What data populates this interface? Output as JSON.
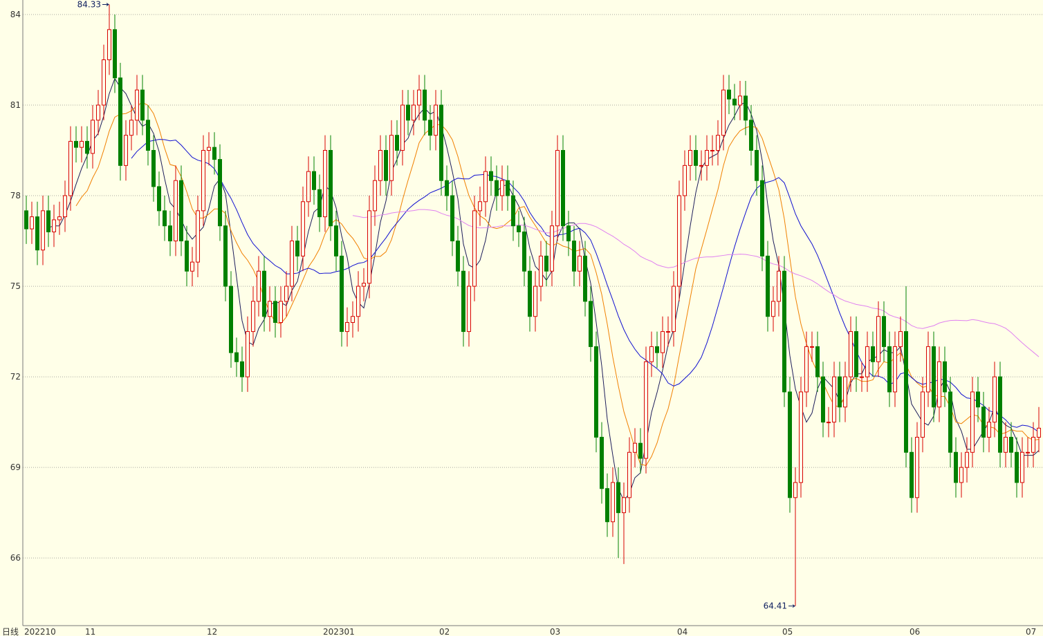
{
  "chart_data": {
    "type": "candlestick",
    "period_label": "日线",
    "categories": [
      "202210",
      null,
      null,
      null,
      null,
      null,
      null,
      null,
      null,
      null,
      null,
      "11",
      null,
      null,
      null,
      null,
      null,
      null,
      null,
      null,
      null,
      null,
      null,
      null,
      null,
      null,
      null,
      null,
      null,
      null,
      null,
      null,
      null,
      "12",
      null,
      null,
      null,
      null,
      null,
      null,
      null,
      null,
      null,
      null,
      null,
      null,
      null,
      null,
      null,
      null,
      null,
      null,
      null,
      null,
      "202301",
      null,
      null,
      null,
      null,
      null,
      null,
      null,
      null,
      null,
      null,
      null,
      null,
      null,
      null,
      null,
      null,
      null,
      null,
      null,
      null,
      "02",
      null,
      null,
      null,
      null,
      null,
      null,
      null,
      null,
      null,
      null,
      null,
      null,
      null,
      null,
      null,
      null,
      null,
      null,
      null,
      "03",
      null,
      null,
      null,
      null,
      null,
      null,
      null,
      null,
      null,
      null,
      null,
      null,
      null,
      null,
      null,
      null,
      null,
      null,
      null,
      null,
      null,
      null,
      "04",
      null,
      null,
      null,
      null,
      null,
      null,
      null,
      null,
      null,
      null,
      null,
      null,
      null,
      null,
      null,
      null,
      null,
      null,
      "05",
      null,
      null,
      null,
      null,
      null,
      null,
      null,
      null,
      null,
      null,
      null,
      null,
      null,
      null,
      null,
      null,
      null,
      null,
      null,
      null,
      null,
      null,
      "06",
      null,
      null,
      null,
      null,
      null,
      null,
      null,
      null,
      null,
      null,
      null,
      null,
      null,
      null,
      null,
      null,
      null,
      null,
      null,
      null,
      "07",
      null,
      null
    ],
    "open": [
      77.5,
      76.9,
      77.3,
      76.2,
      77.5,
      76.8,
      77.2,
      77.3,
      78,
      79.8,
      79.6,
      79.8,
      79.4,
      80.5,
      81,
      82.5,
      83.5,
      81.9,
      79,
      80,
      80.5,
      81.5,
      80.5,
      79.5,
      78.3,
      77.5,
      77,
      76.5,
      78.5,
      76.5,
      75.5,
      75.8,
      77.5,
      79.5,
      79.6,
      79.2,
      77,
      75,
      72.8,
      72.5,
      72,
      73.5,
      74.5,
      75.5,
      74,
      74.5,
      73.8,
      74.5,
      75,
      76.5,
      76,
      77.8,
      78.8,
      78.2,
      77.3,
      79.5,
      77,
      76,
      73.5,
      73.8,
      74,
      75,
      75.1,
      77.5,
      78.5,
      79.5,
      78.5,
      80,
      79.5,
      81,
      80.5,
      81,
      81.5,
      80.5,
      80,
      81,
      78.5,
      78,
      76.5,
      75.5,
      73.5,
      75,
      77.5,
      77.8,
      78.8,
      78.5,
      78,
      78.5,
      78,
      77,
      76.8,
      75.5,
      74,
      75,
      76,
      75.5,
      77,
      79.5,
      77,
      76.5,
      75.5,
      76,
      74.5,
      73,
      70,
      68.3,
      67.2,
      68.5,
      67.5,
      68,
      69.5,
      69.8,
      69.3,
      72.5,
      73,
      72.8,
      73.5,
      73.5,
      75,
      78,
      79,
      79.5,
      79,
      79,
      79.5,
      79.5,
      80,
      81.5,
      81.2,
      81,
      81.3,
      80.5,
      79.5,
      78.5,
      76,
      74,
      74.5,
      75.5,
      71.5,
      68,
      68.5,
      71.5,
      73,
      73,
      72,
      70.5,
      70.5,
      72,
      71,
      72,
      73.5,
      72,
      72,
      73,
      72.5,
      74,
      73,
      71.5,
      73,
      73.5,
      69.5,
      68,
      70,
      71.5,
      73,
      71,
      72.5,
      71.5,
      69.5,
      68.5,
      69,
      69.5,
      71.5,
      71,
      70,
      70.5,
      72,
      69.5,
      70,
      69.5,
      68.5,
      69.5,
      69.5,
      70
    ],
    "high": [
      78,
      77.8,
      77.8,
      78,
      78,
      77.7,
      77.8,
      78.5,
      80.3,
      80.3,
      80.3,
      80.3,
      81,
      81.5,
      83,
      84.33,
      84,
      82.4,
      80.5,
      81,
      82,
      82,
      81,
      80,
      78.8,
      78,
      77.5,
      79,
      79,
      77,
      76.3,
      78,
      80,
      80.1,
      80.1,
      79.7,
      77.5,
      75.5,
      73.3,
      73,
      74,
      75,
      76,
      76,
      75,
      75,
      75,
      75.5,
      77,
      77,
      78.3,
      79.3,
      79.3,
      78.7,
      80,
      80,
      77.5,
      76.5,
      74.3,
      74.5,
      75.5,
      75.6,
      78,
      79,
      80,
      80,
      80.5,
      80.5,
      81.5,
      81.5,
      81.5,
      82,
      82,
      81,
      81.5,
      81.5,
      79,
      78.5,
      77,
      76,
      75.5,
      78,
      78.3,
      79.3,
      79.3,
      79,
      79,
      79,
      78.5,
      77.5,
      77.3,
      76,
      75.5,
      76.5,
      76.5,
      77.5,
      80,
      80,
      77.5,
      77,
      76.5,
      76.5,
      75,
      73.5,
      70.5,
      68.8,
      69,
      69,
      68.5,
      70,
      70.3,
      70.3,
      73,
      73.5,
      73.5,
      74,
      74,
      75.5,
      78.5,
      79.5,
      80,
      80,
      79.5,
      80,
      80,
      80.5,
      82,
      82,
      81.7,
      81.8,
      81.8,
      81,
      80,
      79,
      76.5,
      75,
      76,
      76,
      72,
      69,
      72,
      73.5,
      73.5,
      73.5,
      72.5,
      71,
      72.5,
      72.5,
      72.5,
      74,
      74,
      72.5,
      73.5,
      73.5,
      74.5,
      74.5,
      73.5,
      73.5,
      74,
      75,
      70,
      70.5,
      72,
      73.5,
      73.5,
      73,
      73,
      72,
      70,
      69.5,
      70,
      72,
      72,
      71.5,
      71,
      72.5,
      72.5,
      70.5,
      70.5,
      70,
      70,
      70,
      70.5,
      71
    ],
    "low": [
      76.4,
      76.4,
      75.7,
      75.7,
      76.3,
      76.3,
      76.7,
      76.8,
      77.5,
      79.1,
      79.1,
      78.9,
      78.9,
      80,
      80.5,
      82,
      81.4,
      78.5,
      78.5,
      79.5,
      80,
      80,
      79,
      77.8,
      77,
      76.5,
      76,
      76,
      76,
      75,
      75,
      75.3,
      77,
      79,
      78.7,
      76.5,
      74.5,
      72.3,
      72,
      71.5,
      71.5,
      73,
      74,
      73.5,
      73.5,
      73.3,
      73.3,
      74,
      74.5,
      75.5,
      75.5,
      77.3,
      77.7,
      76.8,
      76.8,
      76.5,
      75.5,
      73,
      73,
      73.3,
      73.5,
      74.5,
      74.6,
      77,
      78,
      78,
      78,
      79,
      79,
      80,
      80,
      80.5,
      80,
      79.5,
      79.5,
      78,
      77.5,
      76,
      75,
      73,
      73,
      74.5,
      77,
      77.3,
      78,
      77.5,
      77.5,
      77.5,
      76.5,
      76.3,
      75,
      73.5,
      73.5,
      74.5,
      75,
      75,
      76.5,
      76.5,
      76,
      75,
      75,
      74,
      72.5,
      69.5,
      67.8,
      66.7,
      66.7,
      66,
      65.8,
      67.5,
      69,
      68.8,
      68.8,
      72,
      72.3,
      72.3,
      73,
      73,
      74.5,
      77.5,
      78.5,
      78.5,
      78.5,
      78.5,
      79,
      79,
      79.5,
      80.7,
      80.5,
      80.5,
      80,
      79,
      78,
      75.5,
      73.5,
      73.5,
      74,
      71,
      67.5,
      64.41,
      68,
      71,
      72.5,
      71.5,
      70,
      70,
      70,
      70.5,
      70.5,
      71.5,
      71.5,
      71.5,
      71.5,
      72,
      72,
      72.5,
      71,
      71,
      72.5,
      69,
      67.5,
      67.5,
      69.5,
      71,
      70.5,
      70.5,
      71,
      69,
      68,
      68,
      68.5,
      69,
      70.5,
      69.5,
      69.5,
      70,
      69,
      69,
      69,
      68,
      68,
      69,
      69,
      69.5
    ],
    "close": [
      76.9,
      77.3,
      76.2,
      77.5,
      76.8,
      77.2,
      77.3,
      78,
      79.8,
      79.6,
      79.8,
      79.4,
      80.5,
      81,
      82.5,
      83.5,
      81.9,
      79,
      80,
      80.5,
      81.5,
      80.5,
      79.5,
      78.3,
      77.5,
      77,
      76.5,
      78.5,
      76.5,
      75.5,
      75.8,
      77.5,
      79.5,
      79.6,
      79.2,
      77,
      75,
      72.8,
      72.5,
      72,
      73.5,
      74.5,
      75.5,
      74,
      74.5,
      73.8,
      74.5,
      75,
      76.5,
      76,
      77.8,
      78.8,
      78.2,
      77.3,
      79.5,
      77,
      76,
      73.5,
      73.8,
      74,
      75,
      75.1,
      77.5,
      78.5,
      79.5,
      78.5,
      80,
      79.5,
      81,
      80.5,
      81,
      81.5,
      80.5,
      80,
      81,
      78.5,
      78,
      76.5,
      75.5,
      73.5,
      75,
      77.5,
      77.8,
      78.8,
      78.5,
      78,
      78.5,
      78,
      77,
      76.8,
      75.5,
      74,
      75,
      76,
      75.5,
      77,
      79.5,
      77,
      76.5,
      75.5,
      76,
      74.5,
      73,
      70,
      68.3,
      67.2,
      68.5,
      67.5,
      68,
      69.5,
      69.8,
      69.3,
      72.5,
      73,
      72.8,
      73.5,
      73.5,
      75,
      78,
      79,
      79.5,
      79,
      79,
      79.5,
      79.5,
      80,
      81.5,
      81.2,
      81,
      81.3,
      80.5,
      79.5,
      78.5,
      76,
      74,
      74.5,
      75.5,
      71.5,
      68,
      68.5,
      71.5,
      73,
      73,
      72,
      70.5,
      70.5,
      72,
      71,
      72,
      73.5,
      72,
      72,
      73,
      72.5,
      74,
      73,
      71.5,
      73,
      73.5,
      69.5,
      68,
      70,
      71.5,
      73,
      71,
      72.5,
      71.5,
      69.5,
      68.5,
      69,
      69.5,
      71.5,
      71,
      70,
      70.5,
      72,
      69.5,
      70,
      69.5,
      68.5,
      69.5,
      69.5,
      70,
      70.3
    ],
    "up_color": "#d80000",
    "down_color": "#008000",
    "moving_averages": [
      {
        "period": 5,
        "color": "#1c1c5a"
      },
      {
        "period": 10,
        "color": "#f08000"
      },
      {
        "period": 20,
        "color": "#1010d0"
      },
      {
        "period": 60,
        "color": "#e080f0"
      }
    ],
    "ylim": [
      63.76,
      84.48
    ],
    "yticks": [
      66,
      69,
      72,
      75,
      78,
      81,
      84
    ],
    "grid": true
  }
}
